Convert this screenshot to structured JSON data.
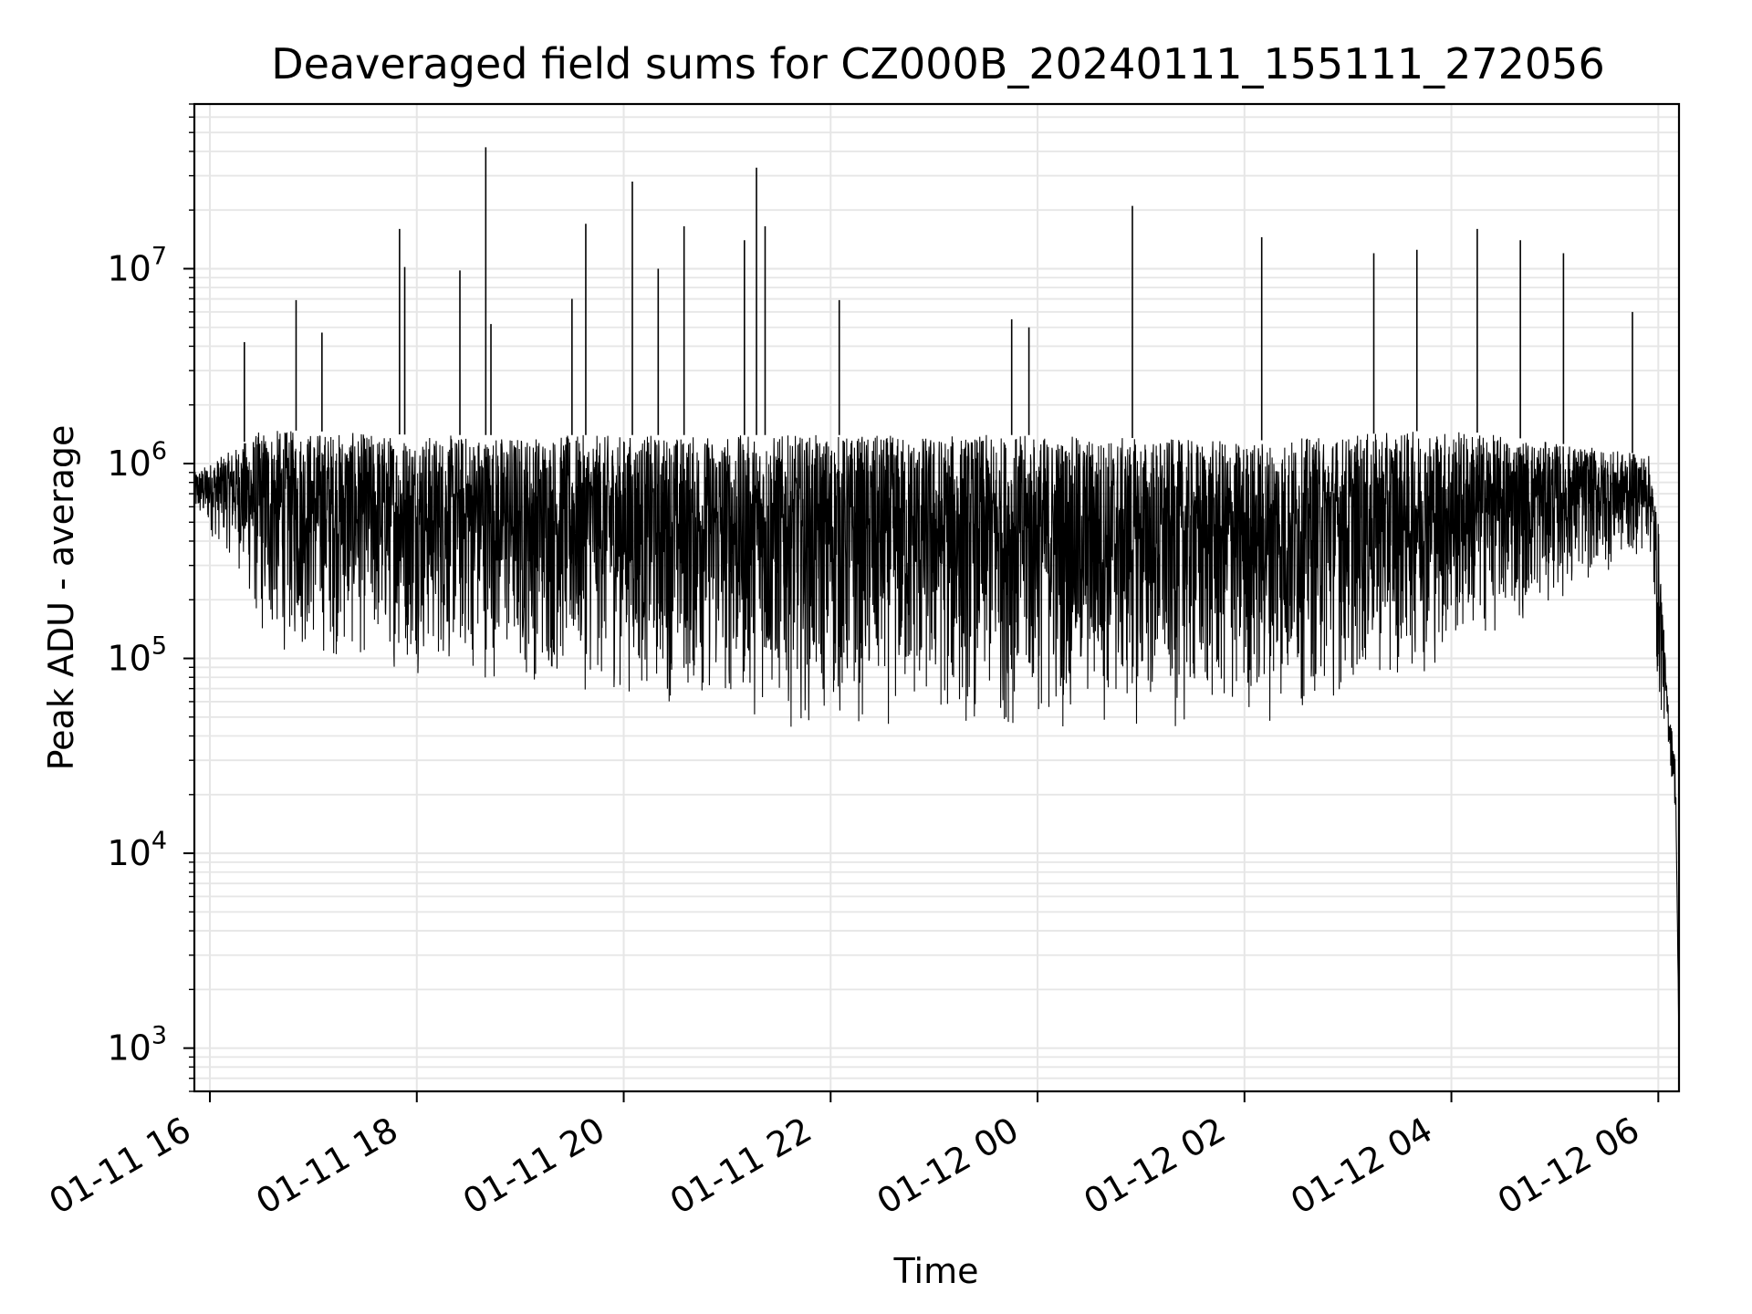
{
  "chart_data": {
    "type": "line",
    "title": "Deaveraged field sums for CZ000B_20240111_155111_272056",
    "xlabel": "Time",
    "ylabel": "Peak ADU - average",
    "yscale": "log",
    "xlim": [
      "2024-01-11T15:51",
      "2024-01-12T06:12"
    ],
    "ylim": [
      600,
      70000000
    ],
    "x_ticks": [
      {
        "value": "2024-01-11T16:00",
        "label": "01-11 16"
      },
      {
        "value": "2024-01-11T18:00",
        "label": "01-11 18"
      },
      {
        "value": "2024-01-11T20:00",
        "label": "01-11 20"
      },
      {
        "value": "2024-01-11T22:00",
        "label": "01-11 22"
      },
      {
        "value": "2024-01-12T00:00",
        "label": "01-12 00"
      },
      {
        "value": "2024-01-12T02:00",
        "label": "01-12 02"
      },
      {
        "value": "2024-01-12T04:00",
        "label": "01-12 04"
      },
      {
        "value": "2024-01-12T06:00",
        "label": "01-12 06"
      }
    ],
    "y_ticks": [
      {
        "value": 1000,
        "base": "10",
        "exp": "3"
      },
      {
        "value": 10000,
        "base": "10",
        "exp": "4"
      },
      {
        "value": 100000,
        "base": "10",
        "exp": "5"
      },
      {
        "value": 1000000,
        "base": "10",
        "exp": "6"
      },
      {
        "value": 10000000,
        "base": "10",
        "exp": "7"
      }
    ],
    "grid": true,
    "line_color": "#000000",
    "grid_color": "#e6e6e6",
    "series": [
      {
        "peaks": [
          [
            "2024-01-11T16:20",
            4200000
          ],
          [
            "2024-01-11T16:50",
            6900000
          ],
          [
            "2024-01-11T17:05",
            4700000
          ],
          [
            "2024-01-11T17:50",
            16000000
          ],
          [
            "2024-01-11T17:53",
            10200000
          ],
          [
            "2024-01-11T18:25",
            9800000
          ],
          [
            "2024-01-11T18:40",
            42000000
          ],
          [
            "2024-01-11T18:43",
            5200000
          ],
          [
            "2024-01-11T19:30",
            7000000
          ],
          [
            "2024-01-11T19:38",
            17000000
          ],
          [
            "2024-01-11T20:05",
            28000000
          ],
          [
            "2024-01-11T20:20",
            10000000
          ],
          [
            "2024-01-11T20:35",
            16500000
          ],
          [
            "2024-01-11T21:10",
            14000000
          ],
          [
            "2024-01-11T21:17",
            33000000
          ],
          [
            "2024-01-11T21:22",
            16500000
          ],
          [
            "2024-01-11T22:05",
            6900000
          ],
          [
            "2024-01-11T23:45",
            5500000
          ],
          [
            "2024-01-11T23:55",
            5000000
          ],
          [
            "2024-01-12T00:55",
            21000000
          ],
          [
            "2024-01-12T02:10",
            14500000
          ],
          [
            "2024-01-12T03:15",
            12000000
          ],
          [
            "2024-01-12T03:40",
            12500000
          ],
          [
            "2024-01-12T04:15",
            16000000
          ],
          [
            "2024-01-12T04:40",
            14000000
          ],
          [
            "2024-01-12T05:05",
            12000000
          ],
          [
            "2024-01-12T05:45",
            6000000
          ]
        ],
        "envelope": [
          [
            "2024-01-11T15:51",
            500000,
            900000
          ],
          [
            "2024-01-11T16:15",
            300000,
            1200000
          ],
          [
            "2024-01-11T16:30",
            100000,
            1500000
          ],
          [
            "2024-01-11T18:00",
            80000,
            1400000
          ],
          [
            "2024-01-11T20:00",
            60000,
            1400000
          ],
          [
            "2024-01-11T22:00",
            40000,
            1400000
          ],
          [
            "2024-01-12T00:00",
            40000,
            1400000
          ],
          [
            "2024-01-12T02:00",
            40000,
            1300000
          ],
          [
            "2024-01-12T03:00",
            60000,
            1400000
          ],
          [
            "2024-01-12T04:00",
            90000,
            1500000
          ],
          [
            "2024-01-12T05:55",
            350000,
            1100000
          ],
          [
            "2024-01-12T06:00",
            50000,
            500000
          ],
          [
            "2024-01-12T06:05",
            40000,
            70000
          ],
          [
            "2024-01-12T06:10",
            15000,
            30000
          ],
          [
            "2024-01-12T06:12",
            1000,
            1000
          ]
        ]
      }
    ]
  }
}
